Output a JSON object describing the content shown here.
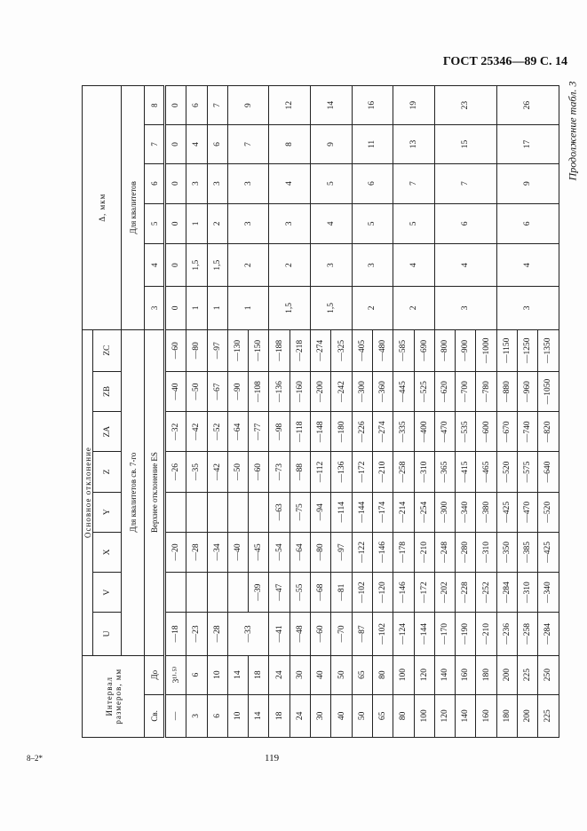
{
  "header": {
    "gost": "ГОСТ 25346—89 С. 14",
    "continuation": "Продолжение табл. 3"
  },
  "footer": {
    "page_number": "119",
    "signature": "8–2*"
  },
  "table": {
    "interval_header": "Интервал размеров, мм",
    "from_label": "Св.",
    "to_label": "До",
    "main_deviation": "Основное отклонение",
    "letters": [
      "U",
      "V",
      "X",
      "Y",
      "Z",
      "ZA",
      "ZB",
      "ZC"
    ],
    "grades_over7": "Для квалитетов св. 7-го",
    "upper_dev": "Верхнее отклонение ES",
    "delta_header": "Δ, мкм",
    "delta_grades_label": "Для квалитетов",
    "delta_grades": [
      "3",
      "4",
      "5",
      "6",
      "7",
      "8"
    ],
    "rows": [
      {
        "from": "—",
        "to": "3¹⁾·⁵⁾",
        "U": "—18",
        "V": "",
        "X": "—20",
        "Y": "",
        "Z": "—26",
        "ZA": "—32",
        "ZB": "—40",
        "ZC": "—60"
      },
      {
        "from": "3",
        "to": "6",
        "U": "—23",
        "V": "",
        "X": "—28",
        "Y": "",
        "Z": "—35",
        "ZA": "—42",
        "ZB": "—50",
        "ZC": "—80"
      },
      {
        "from": "6",
        "to": "10",
        "U": "—28",
        "V": "",
        "X": "—34",
        "Y": "",
        "Z": "—42",
        "ZA": "—52",
        "ZB": "—67",
        "ZC": "—97"
      },
      {
        "from": "10",
        "to": "14",
        "U": "—33",
        "V": "",
        "X": "—40",
        "Y": "",
        "Z": "—50",
        "ZA": "—64",
        "ZB": "—90",
        "ZC": "—130"
      },
      {
        "from": "14",
        "to": "18",
        "V": "—39",
        "X": "—45",
        "Y": "",
        "Z": "—60",
        "ZA": "—77",
        "ZB": "—108",
        "ZC": "—150"
      },
      {
        "from": "18",
        "to": "24",
        "U": "—41",
        "V": "—47",
        "X": "—54",
        "Y": "—63",
        "Z": "—73",
        "ZA": "—98",
        "ZB": "—136",
        "ZC": "—188"
      },
      {
        "from": "24",
        "to": "30",
        "U": "—48",
        "V": "—55",
        "X": "—64",
        "Y": "—75",
        "Z": "—88",
        "ZA": "—118",
        "ZB": "—160",
        "ZC": "—218"
      },
      {
        "from": "30",
        "to": "40",
        "U": "—60",
        "V": "—68",
        "X": "—80",
        "Y": "—94",
        "Z": "—112",
        "ZA": "—148",
        "ZB": "—200",
        "ZC": "—274"
      },
      {
        "from": "40",
        "to": "50",
        "U": "—70",
        "V": "—81",
        "X": "—97",
        "Y": "—114",
        "Z": "—136",
        "ZA": "—180",
        "ZB": "—242",
        "ZC": "—325"
      },
      {
        "from": "50",
        "to": "65",
        "U": "—87",
        "V": "—102",
        "X": "—122",
        "Y": "—144",
        "Z": "—172",
        "ZA": "—226",
        "ZB": "—300",
        "ZC": "—405"
      },
      {
        "from": "65",
        "to": "80",
        "U": "—102",
        "V": "—120",
        "X": "—146",
        "Y": "—174",
        "Z": "—210",
        "ZA": "—274",
        "ZB": "—360",
        "ZC": "—480"
      },
      {
        "from": "80",
        "to": "100",
        "U": "—124",
        "V": "—146",
        "X": "—178",
        "Y": "—214",
        "Z": "—258",
        "ZA": "—335",
        "ZB": "—445",
        "ZC": "—585"
      },
      {
        "from": "100",
        "to": "120",
        "U": "—144",
        "V": "—172",
        "X": "—210",
        "Y": "—254",
        "Z": "—310",
        "ZA": "—400",
        "ZB": "—525",
        "ZC": "—690"
      },
      {
        "from": "120",
        "to": "140",
        "U": "—170",
        "V": "—202",
        "X": "—248",
        "Y": "—300",
        "Z": "—365",
        "ZA": "—470",
        "ZB": "—620",
        "ZC": "—800"
      },
      {
        "from": "140",
        "to": "160",
        "U": "—190",
        "V": "—228",
        "X": "—280",
        "Y": "—340",
        "Z": "—415",
        "ZA": "—535",
        "ZB": "—700",
        "ZC": "—900"
      },
      {
        "from": "160",
        "to": "180",
        "U": "—210",
        "V": "—252",
        "X": "—310",
        "Y": "—380",
        "Z": "—465",
        "ZA": "—600",
        "ZB": "—780",
        "ZC": "—1000"
      },
      {
        "from": "180",
        "to": "200",
        "U": "—236",
        "V": "—284",
        "X": "—350",
        "Y": "—425",
        "Z": "—520",
        "ZA": "—670",
        "ZB": "—880",
        "ZC": "—1150"
      },
      {
        "from": "200",
        "to": "225",
        "U": "—258",
        "V": "—310",
        "X": "—385",
        "Y": "—470",
        "Z": "—575",
        "ZA": "—740",
        "ZB": "—960",
        "ZC": "—1250"
      },
      {
        "from": "225",
        "to": "250",
        "U": "—284",
        "V": "—340",
        "X": "—425",
        "Y": "—520",
        "Z": "—640",
        "ZA": "—820",
        "ZB": "—1050",
        "ZC": "—1350"
      }
    ],
    "delta_groups": [
      [
        "0",
        "0",
        "0",
        "0",
        "0",
        "0"
      ],
      [
        "1",
        "1,5",
        "1",
        "3",
        "4",
        "6"
      ],
      [
        "1",
        "1,5",
        "2",
        "3",
        "6",
        "7"
      ],
      [
        "1",
        "2",
        "3",
        "3",
        "7",
        "9"
      ],
      [
        "1,5",
        "2",
        "3",
        "4",
        "8",
        "12"
      ],
      [
        "1,5",
        "3",
        "4",
        "5",
        "9",
        "14"
      ],
      [
        "2",
        "3",
        "5",
        "6",
        "11",
        "16"
      ],
      [
        "2",
        "4",
        "5",
        "7",
        "13",
        "19"
      ],
      [
        "3",
        "4",
        "6",
        "7",
        "15",
        "23"
      ],
      [
        "3",
        "4",
        "6",
        "9",
        "17",
        "26"
      ]
    ]
  }
}
